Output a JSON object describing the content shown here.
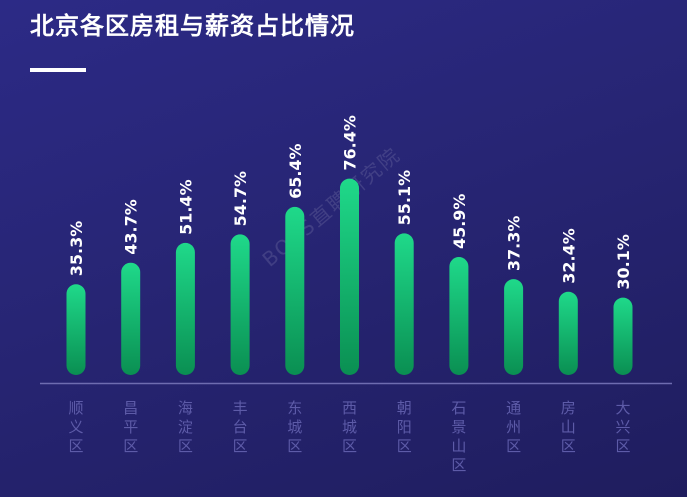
{
  "title": "北京各区房租与薪资占比情况",
  "watermark": "BOSS直聘研究院",
  "chart_data": {
    "type": "bar",
    "title": "北京各区房租与薪资占比情况",
    "categories": [
      "顺义区",
      "昌平区",
      "海淀区",
      "丰台区",
      "东城区",
      "西城区",
      "朝阳区",
      "石景山区",
      "通州区",
      "房山区",
      "大兴区"
    ],
    "values": [
      35.3,
      43.7,
      51.4,
      54.7,
      65.4,
      76.4,
      55.1,
      45.9,
      37.3,
      32.4,
      30.1
    ],
    "labels": [
      "35.3%",
      "43.7%",
      "51.4%",
      "54.7%",
      "65.4%",
      "76.4%",
      "55.1%",
      "45.9%",
      "37.3%",
      "32.4%",
      "30.1%"
    ],
    "ylim": [
      0,
      80
    ],
    "grid": false,
    "bar_color_top": "#1fd98a",
    "bar_color_bottom": "#0a8f52",
    "axis_color": "#6e6cb0",
    "category_color": "#5d5ba8",
    "label_color": "#ffffff"
  }
}
